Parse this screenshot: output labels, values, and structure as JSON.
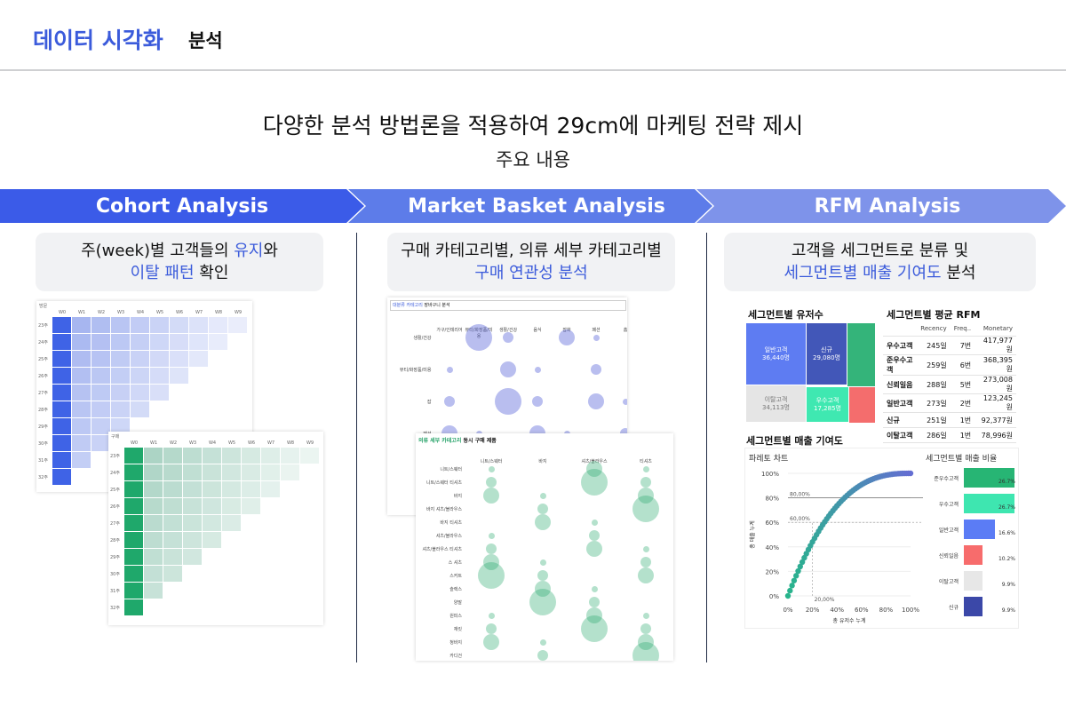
{
  "header": {
    "title_blue": "데이터 시각화",
    "title_black": "분석"
  },
  "main_title": "다양한 분석 방법론을 적용하여 29cm에 마케팅 전략 제시",
  "subtitle": "주요 내용",
  "sections": [
    {
      "arrow": "Cohort Analysis",
      "desc_line1_pre": "주(week)별 고객들의 ",
      "desc_line1_blue": "유지",
      "desc_line1_post": "와",
      "desc_line2_blue": "이탈 패턴",
      "desc_line2_post": " 확인"
    },
    {
      "arrow": "Market Basket Analysis",
      "desc_line1": "구매 카테고리별, 의류 세부 카테고리별",
      "desc_line2_blue": "구매 연관성 분석"
    },
    {
      "arrow": "RFM Analysis",
      "desc_line1": "고객을 세그먼트로 분류 및",
      "desc_line2_blue": "세그먼트별 매출 기여도",
      "desc_line2_post": " 분석"
    }
  ],
  "cohort": {
    "label_visit": "방문",
    "label_purchase": "구매",
    "weeks": [
      "W0",
      "W1",
      "W2",
      "W3",
      "W4",
      "W5",
      "W6",
      "W7",
      "W8",
      "W9"
    ],
    "rows": [
      "23주",
      "24주",
      "25주",
      "26주",
      "27주",
      "28주",
      "29주",
      "30주",
      "31주",
      "32주"
    ]
  },
  "basket": {
    "title1_blue": "대분류 카테고리",
    "title1": "장바구니 분석",
    "title2_green": "의류 세부 카테고리",
    "title2": "동시 구매 제품",
    "cols": [
      "니트/스웨터",
      "바지",
      "셔츠/블라우스",
      "티셔츠"
    ],
    "rows": [
      "니트/스웨터",
      "니트/스웨터 티셔츠",
      "바지",
      "바지 셔츠/블라우스",
      "바지 티셔츠",
      "셔츠/블라우스",
      "셔츠/블라우스 티셔츠",
      "스 셔츠",
      "스커트",
      "슬랙스",
      "양말",
      "원피스",
      "재킷",
      "청바지",
      "카디건"
    ],
    "top_cols": [
      "가구/인테리어",
      "뷰티/화장품/미용",
      "생활/건강",
      "음식",
      "잡화",
      "패션",
      "홈"
    ]
  },
  "rfm": {
    "treemap_title": "세그먼트별 유저수",
    "treemap": [
      {
        "name": "일반고객",
        "value": "36,440명"
      },
      {
        "name": "신규",
        "value": "29,080명"
      },
      {
        "name": "이탈고객",
        "value": "34,113명"
      },
      {
        "name": "우수고객",
        "value": "17,285명"
      }
    ],
    "table_title": "세그먼트별 평균 RFM",
    "table_head": [
      "Recency",
      "Freq..",
      "Monetary"
    ],
    "table_rows": [
      [
        "우수고객",
        "245일",
        "7번",
        "417,977원"
      ],
      [
        "준우수고객",
        "259일",
        "6번",
        "368,395원"
      ],
      [
        "신뢰일음",
        "288일",
        "5번",
        "273,008원"
      ],
      [
        "일반고객",
        "273일",
        "2번",
        "123,245원"
      ],
      [
        "신규",
        "251일",
        "1번",
        "92,377원"
      ],
      [
        "이탈고객",
        "286일",
        "1번",
        "78,996원"
      ]
    ],
    "contrib_title": "세그먼트별 매출 기여도",
    "pareto_title": "파레토 차트",
    "pareto_y": [
      "100%",
      "80%",
      "60%",
      "40%",
      "20%",
      "0%"
    ],
    "pareto_x": [
      "0%",
      "20%",
      "40%",
      "60%",
      "80%",
      "100%"
    ],
    "pareto_marks": [
      "80,00%",
      "60,00%",
      "20,00%"
    ],
    "pareto_ylabel": "총 매출 누계",
    "pareto_xlabel": "총 유저수 누계",
    "ratio_title": "세그먼트별 매출 비율",
    "ratio": [
      {
        "name": "준우수고객",
        "pct": "26.7%",
        "color": "#27b574",
        "frac": 0.98
      },
      {
        "name": "우수고객",
        "pct": "26.7%",
        "color": "#3ee6b0",
        "frac": 0.98
      },
      {
        "name": "일반고객",
        "pct": "16.6%",
        "color": "#5b7cf5",
        "frac": 0.61
      },
      {
        "name": "신뢰일음",
        "pct": "10.2%",
        "color": "#f76c6c",
        "frac": 0.37
      },
      {
        "name": "이탈고객",
        "pct": "9.9%",
        "color": "#e7e7e7",
        "frac": 0.36
      },
      {
        "name": "신규",
        "pct": "9.9%",
        "color": "#3b48a8",
        "frac": 0.36
      }
    ]
  }
}
